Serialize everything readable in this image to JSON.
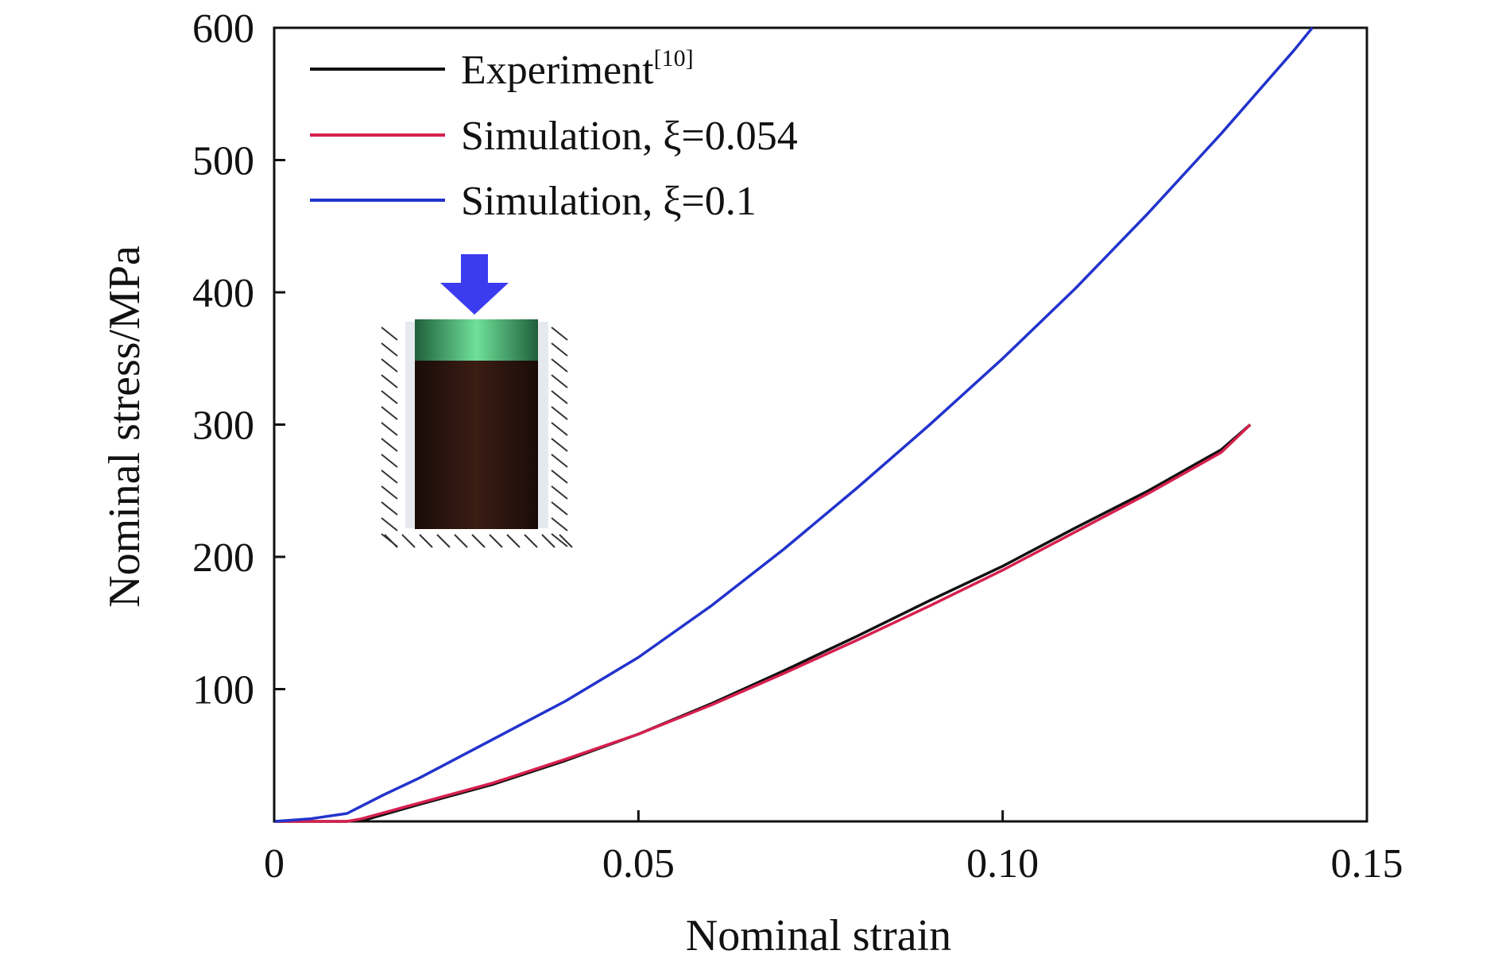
{
  "chart_data": {
    "type": "line",
    "xlabel": "Nominal strain",
    "ylabel": "Nominal stress/MPa",
    "xlim": [
      0,
      0.15
    ],
    "ylim": [
      0,
      600
    ],
    "x_ticks": [
      0,
      0.05,
      0.1,
      0.15
    ],
    "x_tick_labels": [
      "0",
      "0.05",
      "0.10",
      "0.15"
    ],
    "y_ticks": [
      100,
      200,
      300,
      400,
      500,
      600
    ],
    "y_tick_labels": [
      "100",
      "200",
      "300",
      "400",
      "500",
      "600"
    ],
    "grid": false,
    "legend_position": "top-left",
    "series": [
      {
        "name": "Experiment",
        "name_superscript": "[10]",
        "color": "#111111",
        "x": [
          0.0,
          0.01,
          0.013,
          0.02,
          0.03,
          0.04,
          0.05,
          0.06,
          0.07,
          0.08,
          0.09,
          0.1,
          0.11,
          0.12,
          0.13,
          0.134
        ],
        "y": [
          0,
          0,
          2,
          13,
          28,
          46,
          66,
          89,
          114,
          140,
          167,
          193,
          222,
          250,
          281,
          300
        ]
      },
      {
        "name": "Simulation, ξ=0.054",
        "color": "#d6204f",
        "x": [
          0.0,
          0.01,
          0.012,
          0.02,
          0.03,
          0.04,
          0.05,
          0.06,
          0.07,
          0.08,
          0.09,
          0.1,
          0.11,
          0.12,
          0.13,
          0.134
        ],
        "y": [
          0,
          0,
          2,
          14,
          29,
          47,
          66,
          88,
          112,
          137,
          163,
          190,
          219,
          248,
          279,
          300
        ]
      },
      {
        "name": "Simulation, ξ=0.1",
        "color": "#2233cc",
        "x": [
          0.0,
          0.005,
          0.01,
          0.015,
          0.02,
          0.03,
          0.04,
          0.05,
          0.06,
          0.07,
          0.08,
          0.09,
          0.1,
          0.11,
          0.12,
          0.13,
          0.14,
          0.1425
        ],
        "y": [
          0,
          2,
          6,
          20,
          33,
          62,
          91,
          124,
          163,
          206,
          252,
          300,
          350,
          403,
          460,
          520,
          583,
          600
        ]
      }
    ]
  },
  "inset": {
    "arrow_color": "#3b3bf0",
    "cap_color": "#2f8f55",
    "specimen_color": "#2b1410"
  }
}
